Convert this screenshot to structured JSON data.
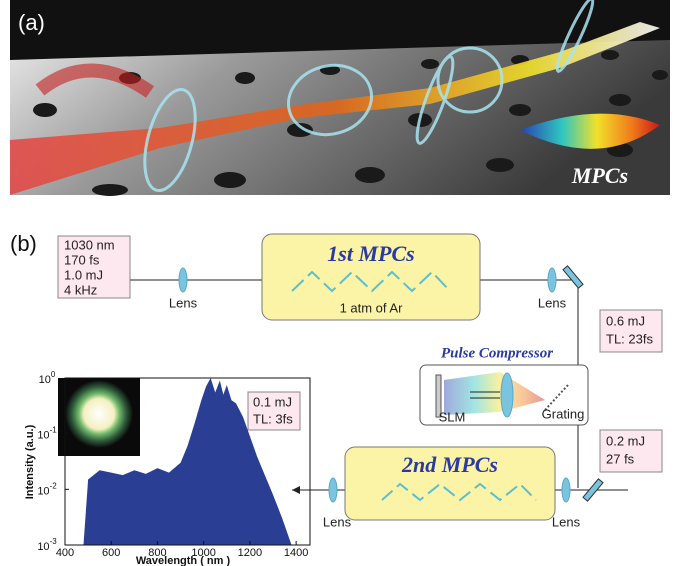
{
  "panel_a": {
    "label": "(a)",
    "annotation": "MPCs"
  },
  "panel_b": {
    "label": "(b)",
    "input_box": [
      "1030 nm",
      "170 fs",
      "1.0 mJ",
      "4 kHz"
    ],
    "lens_labels": [
      "Lens",
      "Lens",
      "Lens",
      "Lens"
    ],
    "stage1": {
      "title": "1st MPCs",
      "note": "1 atm of Ar"
    },
    "after_stage1": [
      "0.6 mJ",
      "TL: 23fs"
    ],
    "compressor": {
      "title": "Pulse Compressor",
      "slm": "SLM",
      "grating": "Grating"
    },
    "after_compressor": [
      "0.2 mJ",
      "27 fs"
    ],
    "stage2": {
      "title": "2nd MPCs"
    },
    "output_box": [
      "0.1 mJ",
      "TL: 3fs"
    ]
  },
  "chart_data": {
    "type": "area",
    "x_label": "Wavelength ( nm )",
    "y_label": "Intensity (a.u.)",
    "color": "#2a3f94",
    "log_y": true,
    "x": [
      480,
      500,
      550,
      600,
      650,
      700,
      750,
      800,
      850,
      900,
      930,
      960,
      990,
      1010,
      1030,
      1050,
      1070,
      1085,
      1100,
      1120,
      1140,
      1170,
      1200,
      1230,
      1260,
      1300,
      1340,
      1380
    ],
    "values": [
      0.001,
      0.015,
      0.022,
      0.02,
      0.018,
      0.022,
      0.019,
      0.024,
      0.02,
      0.03,
      0.06,
      0.15,
      0.4,
      0.7,
      1.0,
      0.55,
      0.9,
      0.5,
      0.75,
      0.4,
      0.35,
      0.2,
      0.09,
      0.04,
      0.02,
      0.008,
      0.003,
      0.001
    ],
    "xlim": [
      400,
      1460
    ],
    "ylim": [
      0.001,
      1
    ],
    "xticks": [
      400,
      600,
      800,
      1000,
      1200,
      1400
    ],
    "yticks": [
      {
        "value": 0.001,
        "label": "10^-3"
      },
      {
        "value": 0.01,
        "label": "10^-2"
      },
      {
        "value": 0.1,
        "label": "10^-1"
      },
      {
        "value": 1,
        "label": "10^0"
      }
    ]
  }
}
